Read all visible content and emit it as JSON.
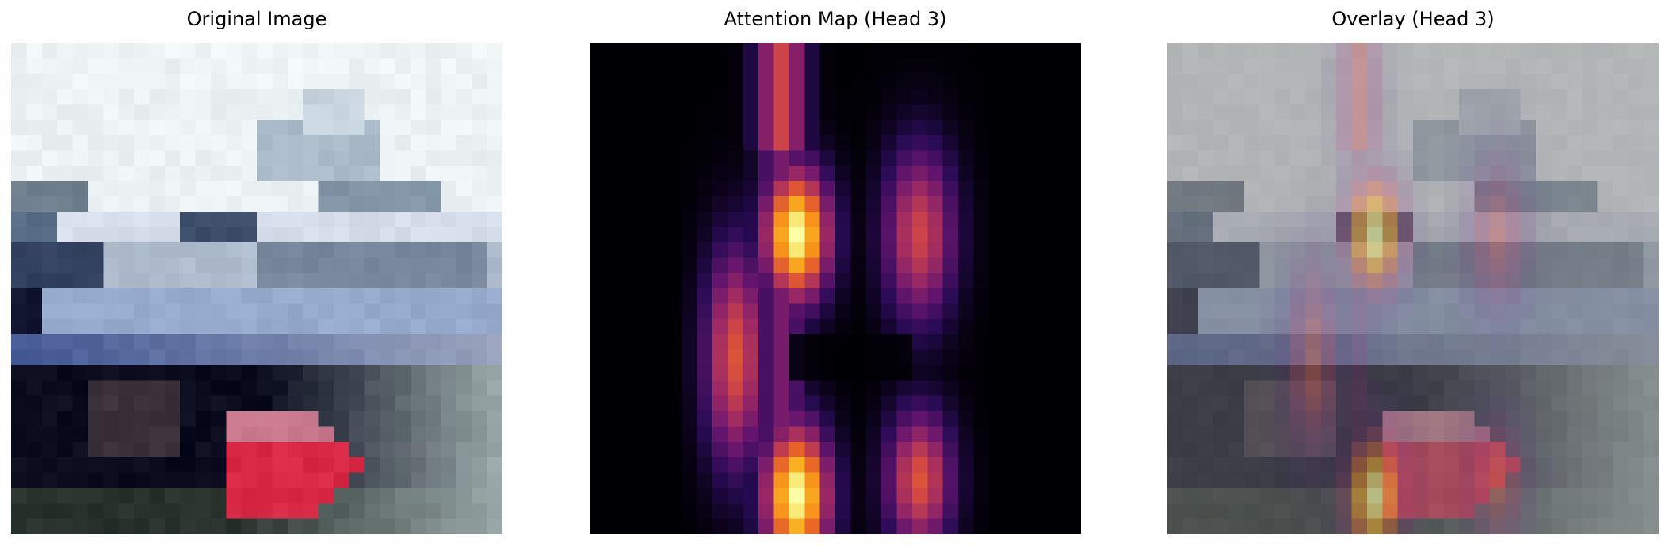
{
  "panels": [
    {
      "title": "Original Image"
    },
    {
      "title": "Attention Map (Head 3)"
    },
    {
      "title": "Overlay (Head 3)"
    }
  ],
  "colormap": "inferno"
}
